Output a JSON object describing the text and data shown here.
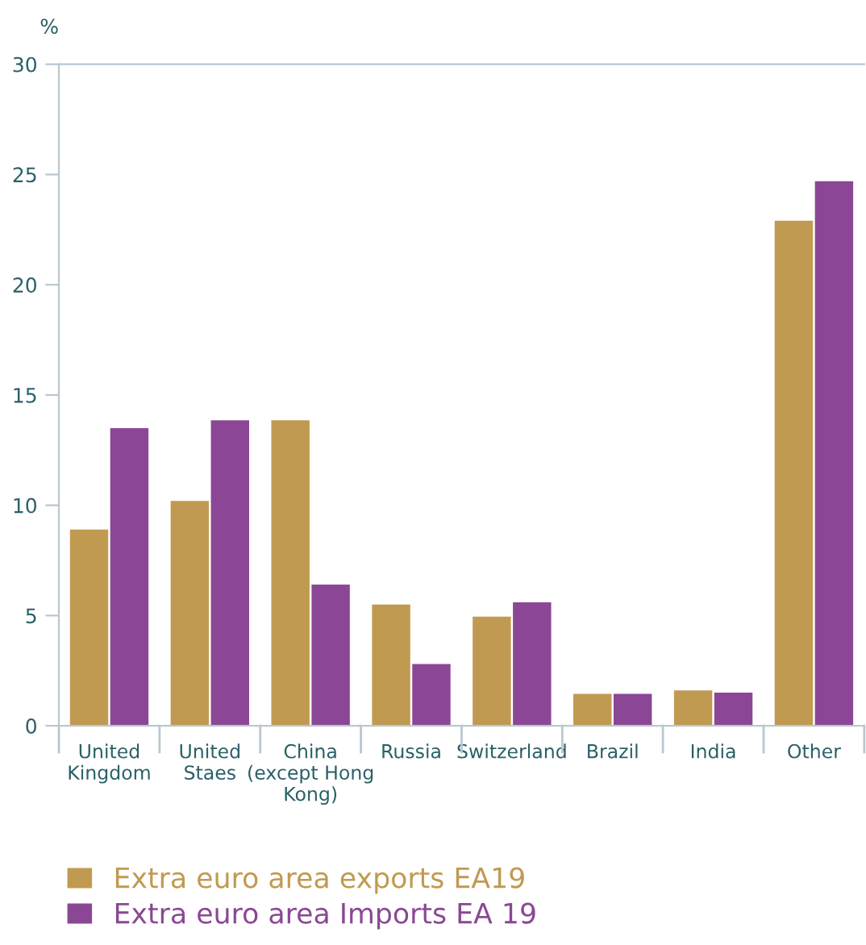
{
  "chart_data": {
    "type": "bar",
    "ylabel": "%",
    "categories": [
      "United\nKingdom",
      "United\nStaes",
      "China\n(except Hong\nKong)",
      "Russia",
      "Switzerland",
      "Brazil",
      "India",
      "Other"
    ],
    "series": [
      {
        "name": "Extra euro area exports EA19",
        "color": "#c19a51",
        "values": [
          8.9,
          10.2,
          13.85,
          5.5,
          4.95,
          1.45,
          1.6,
          22.9
        ]
      },
      {
        "name": "Extra euro area Imports EA 19",
        "color": "#8b4795",
        "values": [
          13.5,
          13.85,
          6.4,
          2.8,
          5.6,
          1.45,
          1.5,
          24.7
        ]
      }
    ],
    "ylim": [
      0,
      30
    ],
    "yticks": [
      0,
      5,
      10,
      15,
      20,
      25,
      30
    ],
    "grid": false,
    "legend": "bottom"
  }
}
